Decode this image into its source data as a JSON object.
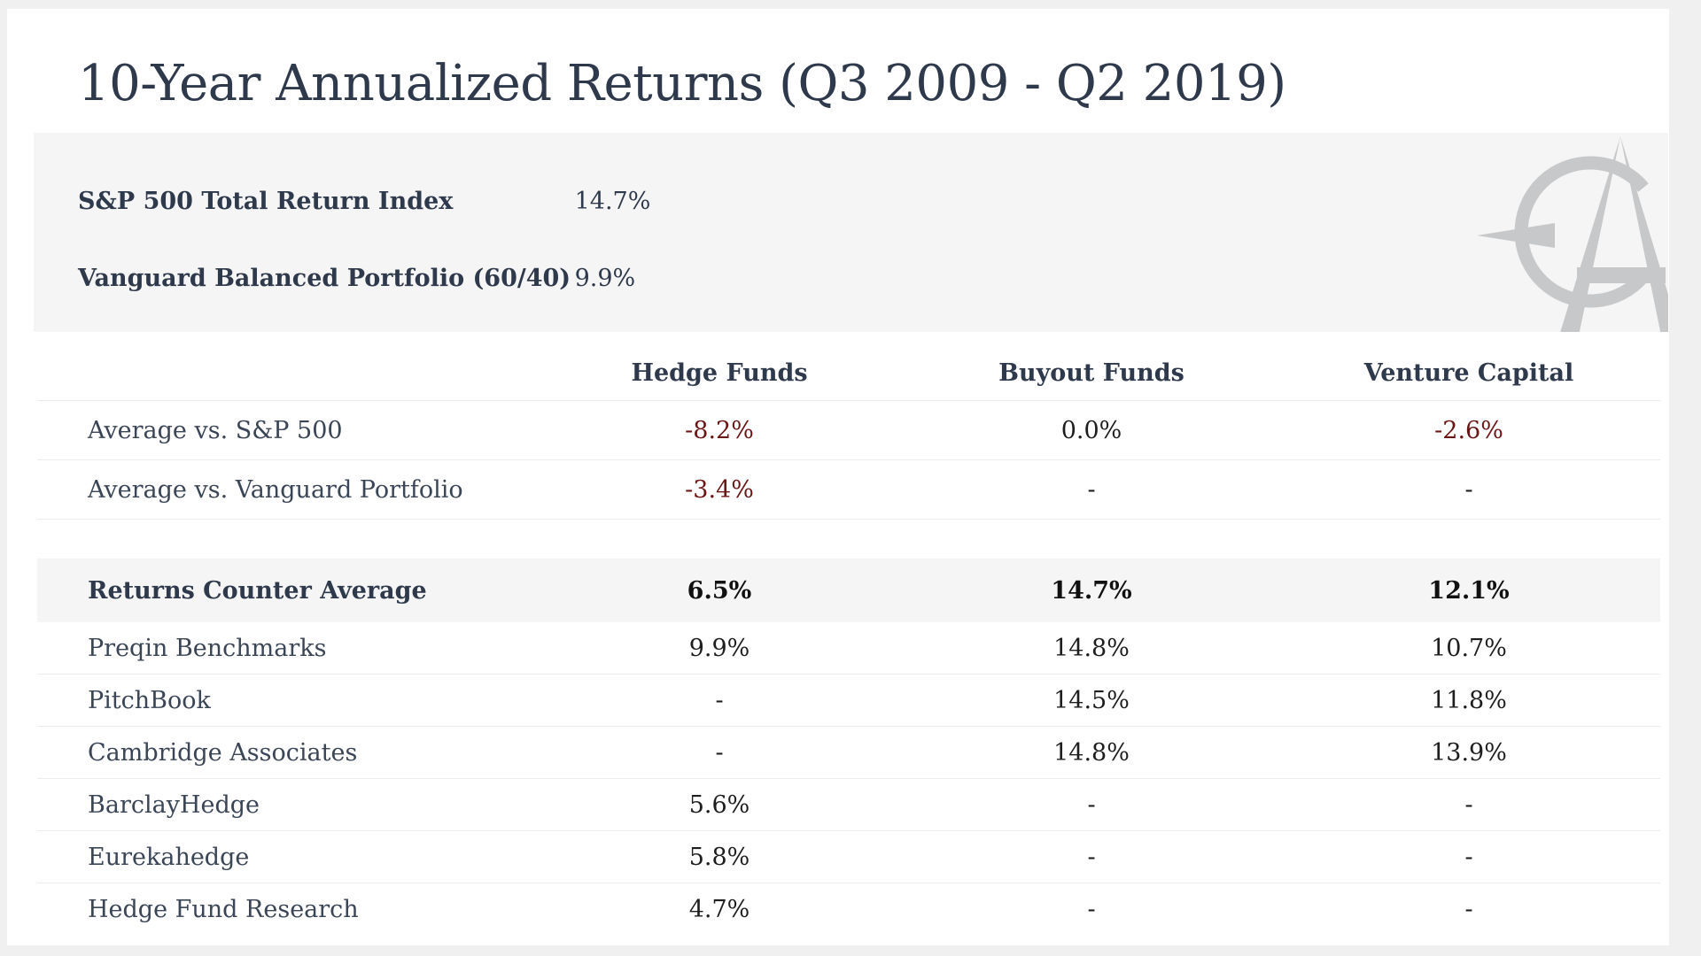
{
  "title": "10-Year Annualized Returns (Q3 2009 - Q2 2019)",
  "summary": [
    {
      "label": "S&P 500 Total Return Index",
      "value": "14.7%"
    },
    {
      "label": "Vanguard Balanced Portfolio (60/40)",
      "value": "9.9%"
    }
  ],
  "table": {
    "headers": [
      "",
      "Hedge Funds",
      "Buyout Funds",
      "Venture Capital"
    ],
    "comparison_rows": [
      {
        "label": "Average vs. S&P 500",
        "values": [
          "-8.2%",
          "0.0%",
          "-2.6%"
        ]
      },
      {
        "label": "Average vs. Vanguard Portfolio",
        "values": [
          "-3.4%",
          "-",
          "-"
        ]
      }
    ],
    "average_row": {
      "label": "Returns Counter Average",
      "values": [
        "6.5%",
        "14.7%",
        "12.1%"
      ]
    },
    "source_rows": [
      {
        "label": "Preqin Benchmarks",
        "values": [
          "9.9%",
          "14.8%",
          "10.7%"
        ]
      },
      {
        "label": "PitchBook",
        "values": [
          "-",
          "14.5%",
          "11.8%"
        ]
      },
      {
        "label": "Cambridge Associates",
        "values": [
          "-",
          "14.8%",
          "13.9%"
        ]
      },
      {
        "label": "BarclayHedge",
        "values": [
          "5.6%",
          "-",
          "-"
        ]
      },
      {
        "label": "Eurekahedge",
        "values": [
          "5.8%",
          "-",
          "-"
        ]
      },
      {
        "label": "Hedge Fund Research",
        "values": [
          "4.7%",
          "-",
          "-"
        ]
      }
    ]
  },
  "logo": {
    "icon": "compass-a-logo-icon",
    "color": "#c6c8ca"
  },
  "colors": {
    "text": "#2e3a4b",
    "negative": "#6b1616",
    "panel_background": "#f5f5f5"
  }
}
